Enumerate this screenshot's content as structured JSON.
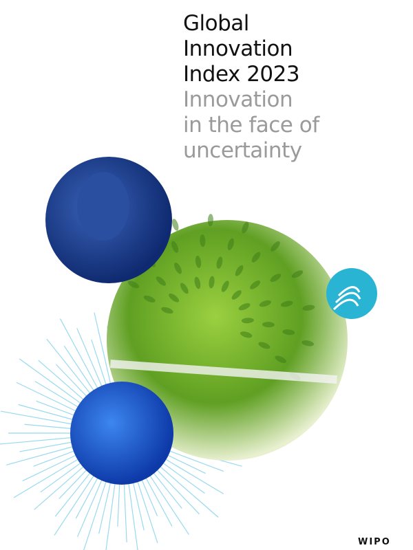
{
  "cover": {
    "title_lines": [
      "Global",
      "Innovation",
      "Index 2023"
    ],
    "subtitle_lines": [
      "Innovation",
      "in the face of",
      "uncertainty"
    ],
    "publisher": "WIPO"
  },
  "colors": {
    "title": "#111111",
    "subtitle": "#9a9a9a",
    "portrait_blue": "#1f3f8f",
    "green": "#7fbf2a",
    "teal": "#29b4d4",
    "sphere_blue": "#1a5fd8"
  }
}
